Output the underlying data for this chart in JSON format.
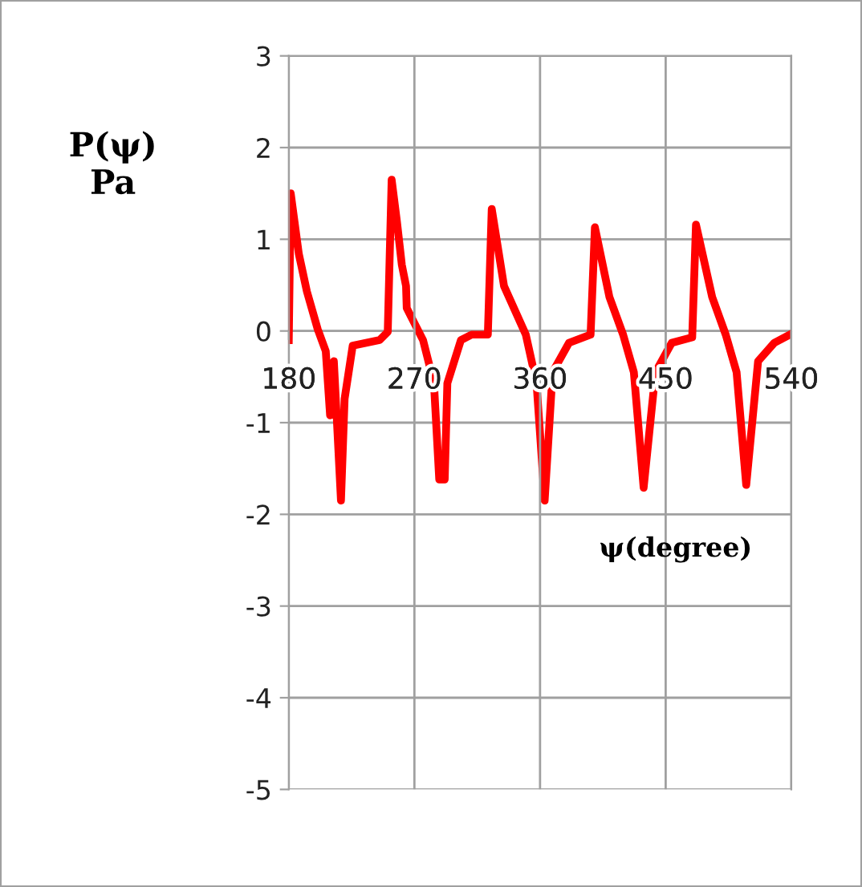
{
  "chart_data": {
    "type": "line",
    "xlabel": "ψ(degree)",
    "ylabel": "P(ψ)\nPa",
    "xlim": [
      180,
      540
    ],
    "xticks": [
      180,
      270,
      360,
      450,
      540
    ],
    "ylim": [
      -5,
      3
    ],
    "yticks": [
      -5,
      -4,
      -3,
      -2,
      -1,
      0,
      1,
      2,
      3
    ],
    "grid": true,
    "marker": "none",
    "line_style": "solid",
    "series": [
      {
        "color": "#ff0000",
        "x": [
          180,
          181.4,
          187.2,
          193,
          200.7,
          206.5,
          209.6,
          212.3,
          217.4,
          220,
          225.8,
          245,
          250.9,
          253.7,
          257.5,
          261,
          264,
          264.5,
          276.2,
          284,
          287.8,
          291.7,
          293.6,
          303.3,
          311,
          322.6,
          325.4,
          334.2,
          349.8,
          357.5,
          363.3,
          369,
          380.7,
          396.2,
          399.3,
          409.7,
          419.5,
          427.2,
          434.2,
          442.7,
          454.3,
          469,
          471.7,
          483.3,
          493,
          500.8,
          507.7,
          516.2,
          527.8,
          539
        ],
        "values": [
          -0.1,
          1.5,
          0.84,
          0.43,
          0.02,
          -0.22,
          -0.92,
          -0.33,
          -1.85,
          -0.74,
          -0.16,
          -0.1,
          -0.01,
          1.65,
          1.19,
          0.72,
          0.49,
          0.25,
          -0.1,
          -0.57,
          -1.62,
          -1.62,
          -0.57,
          -0.1,
          -0.04,
          -0.04,
          1.33,
          0.49,
          -0.04,
          -0.57,
          -1.85,
          -0.45,
          -0.13,
          -0.04,
          1.13,
          0.37,
          -0.04,
          -0.45,
          -1.71,
          -0.45,
          -0.13,
          -0.07,
          1.16,
          0.37,
          -0.04,
          -0.45,
          -1.68,
          -0.33,
          -0.13,
          -0.04
        ]
      }
    ]
  }
}
